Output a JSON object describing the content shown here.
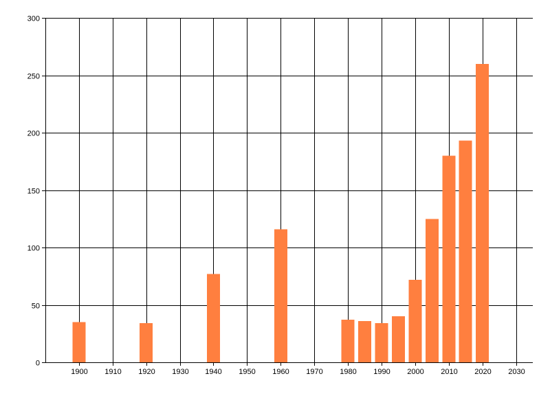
{
  "chart_data": {
    "type": "bar",
    "title": "",
    "xlabel": "",
    "ylabel": "",
    "x": [
      1900,
      1920,
      1940,
      1960,
      1980,
      1985,
      1990,
      1995,
      2000,
      2005,
      2010,
      2015,
      2020
    ],
    "values": [
      35,
      34,
      77,
      116,
      37,
      36,
      34,
      40,
      72,
      125,
      180,
      193,
      260
    ],
    "xlim": [
      1890,
      2035
    ],
    "ylim": [
      0,
      300
    ],
    "x_ticks": [
      1900,
      1910,
      1920,
      1930,
      1940,
      1950,
      1960,
      1970,
      1980,
      1990,
      2000,
      2010,
      2020,
      2030
    ],
    "y_ticks": [
      0,
      50,
      100,
      150,
      200,
      250,
      300
    ],
    "grid": true,
    "bar_color": "#FF7F3F",
    "grid_color": "#000000",
    "background": "#FFFFFF"
  }
}
